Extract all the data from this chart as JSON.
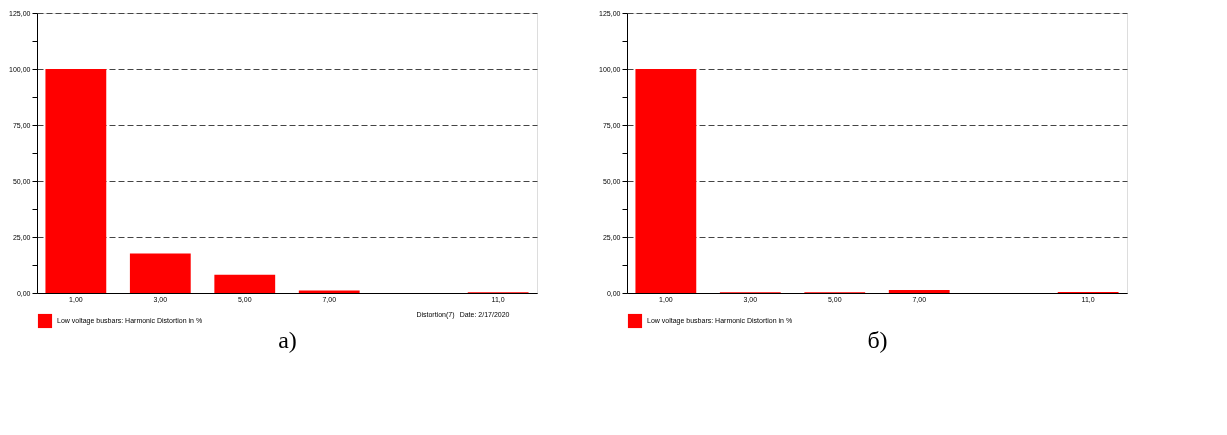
{
  "chart_data": [
    {
      "type": "bar",
      "xlabel": "а)",
      "categories": [
        "1,00",
        "3,00",
        "5,00",
        "7,00",
        null,
        "11,0"
      ],
      "series": [
        {
          "name": "Low voltage busbars: Harmonic Distortion in %",
          "color": "#ff0000",
          "values": [
            100,
            17.6,
            8.1,
            1.1,
            null,
            0.3
          ]
        }
      ],
      "ylim": [
        0,
        125
      ],
      "yticks": [
        {
          "value": 0,
          "label": "0,00"
        },
        {
          "value": 12.5,
          "label": null
        },
        {
          "value": 25,
          "label": "25,00"
        },
        {
          "value": 37.5,
          "label": null
        },
        {
          "value": 50,
          "label": "50,00"
        },
        {
          "value": 62.5,
          "label": null
        },
        {
          "value": 75,
          "label": "75,00"
        },
        {
          "value": 87.5,
          "label": null
        },
        {
          "value": 100,
          "label": "100,00"
        },
        {
          "value": 112.5,
          "label": null
        },
        {
          "value": 125,
          "label": "125,00"
        }
      ],
      "grid": "y",
      "legend": "bottom left",
      "annotations": [
        "Distortion(7)",
        "Date: 2/17/2020"
      ]
    },
    {
      "type": "bar",
      "xlabel": "б)",
      "categories": [
        "1,00",
        "3,00",
        "5,00",
        "7,00",
        null,
        "11,0"
      ],
      "series": [
        {
          "name": "Low voltage busbars: Harmonic Distortion in %",
          "color": "#ff0000",
          "values": [
            100,
            0.3,
            0.3,
            1.3,
            null,
            0.4
          ]
        }
      ],
      "ylim": [
        0,
        125
      ],
      "yticks": [
        {
          "value": 0,
          "label": "0,00"
        },
        {
          "value": 12.5,
          "label": null
        },
        {
          "value": 25,
          "label": "25,00"
        },
        {
          "value": 37.5,
          "label": null
        },
        {
          "value": 50,
          "label": "50,00"
        },
        {
          "value": 62.5,
          "label": null
        },
        {
          "value": 75,
          "label": "75,00"
        },
        {
          "value": 87.5,
          "label": null
        },
        {
          "value": 100,
          "label": "100,00"
        },
        {
          "value": 112.5,
          "label": null
        },
        {
          "value": 125,
          "label": "125,00"
        }
      ],
      "grid": "y",
      "legend": "bottom left"
    }
  ]
}
